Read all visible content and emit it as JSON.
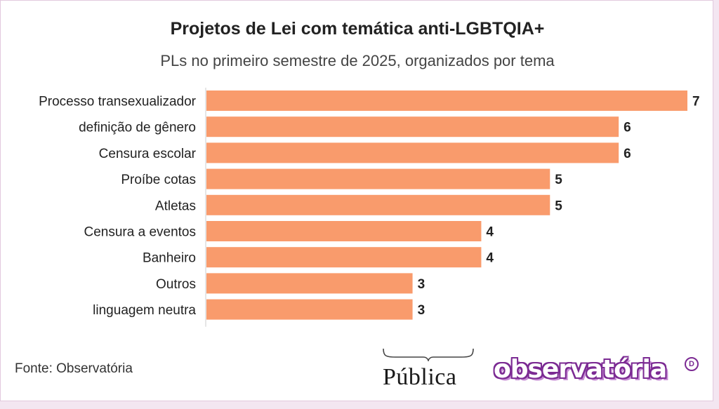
{
  "title": "Projetos de Lei com temática anti-LGBTQIA+",
  "subtitle": "PLs no primeiro semestre de 2025, organizados por tema",
  "source": "Fonte: Observatória",
  "logos": {
    "publica": "Pública",
    "observatoria": "observatória",
    "observatoria_badge": "D"
  },
  "colors": {
    "bar": "#f99b6c",
    "axis": "#cccccc",
    "label": "#222222",
    "value": "#222222",
    "background": "#f3e6f1",
    "logo_purple": "#7b2a93"
  },
  "chart_data": {
    "type": "bar",
    "orientation": "horizontal",
    "categories": [
      "Processo transexualizador",
      "definição de gênero",
      "Censura escolar",
      "Proíbe cotas",
      "Atletas",
      "Censura a eventos",
      "Banheiro",
      "Outros",
      "linguagem neutra"
    ],
    "values": [
      7,
      6,
      6,
      5,
      5,
      4,
      4,
      3,
      3
    ],
    "title": "Projetos de Lei com temática anti-LGBTQIA+",
    "subtitle": "PLs no primeiro semestre de 2025, organizados por tema",
    "xlabel": "",
    "ylabel": "",
    "xlim": [
      0,
      7
    ],
    "grid": false,
    "data_labels": true
  }
}
